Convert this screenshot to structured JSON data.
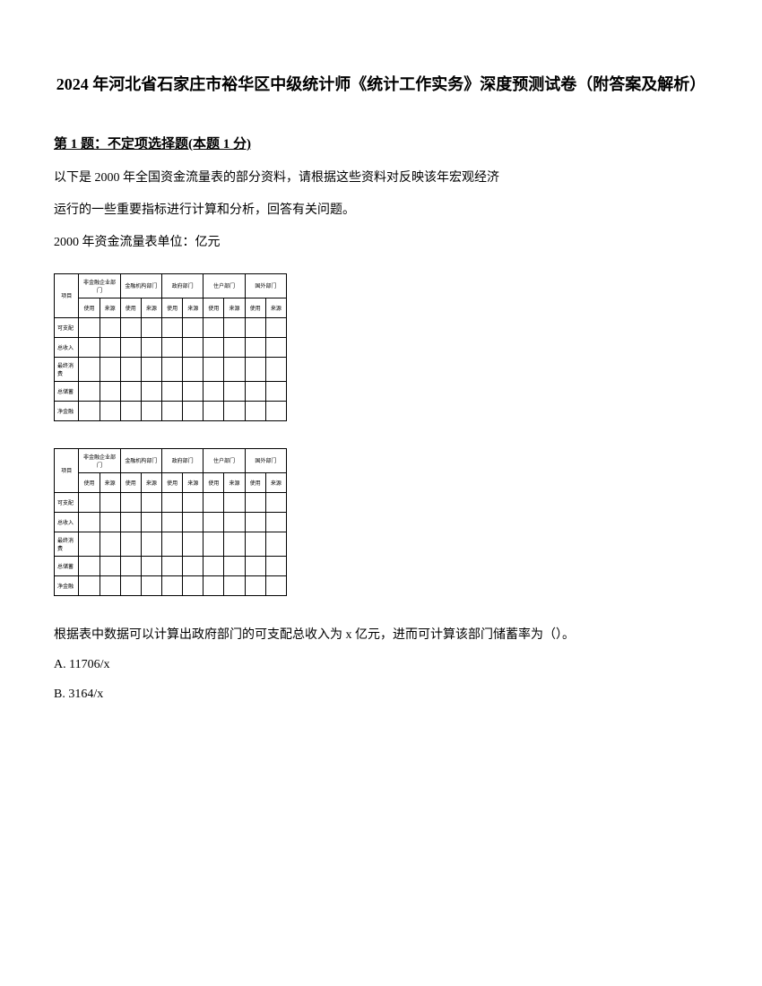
{
  "title": "2024 年河北省石家庄市裕华区中级统计师《统计工作实务》深度预测试卷（附答案及解析）",
  "question": {
    "header": "第 1 题：不定项选择题(本题 1 分)",
    "line1": "以下是 2000 年全国资金流量表的部分资料，请根据这些资料对反映该年宏观经济",
    "line2": "运行的一些重要指标进行计算和分析，回答有关问题。",
    "line3": "2000 年资金流量表单位：亿元"
  },
  "table": {
    "headers": {
      "row1_col1": "非金融企业部门",
      "row1_col2": "金融机构部门",
      "row1_col3": "政府部门",
      "row1_col4": "住户部门",
      "row1_col5": "国外部门",
      "row2_label": "项目",
      "sub_cols": [
        "使用",
        "来源",
        "使用",
        "来源",
        "使用",
        "来源",
        "使用",
        "来源",
        "使用",
        "来源"
      ]
    },
    "rows": [
      {
        "label": "可支配",
        "cells": [
          "",
          "",
          "",
          "",
          "",
          "",
          "",
          "",
          "",
          ""
        ]
      },
      {
        "label": "总收入",
        "cells": [
          "",
          "",
          "",
          "",
          "",
          "",
          "",
          "",
          "",
          ""
        ]
      },
      {
        "label": "最终消费",
        "cells": [
          "",
          "",
          "",
          "",
          "",
          "",
          "",
          "",
          "",
          ""
        ]
      },
      {
        "label": "总储蓄",
        "cells": [
          "",
          "",
          "",
          "",
          "",
          "",
          "",
          "",
          "",
          ""
        ]
      },
      {
        "label": "净金融",
        "cells": [
          "",
          "",
          "",
          "",
          "",
          "",
          "",
          "",
          "",
          ""
        ]
      }
    ]
  },
  "conclusion": "根据表中数据可以计算出政府部门的可支配总收入为 x 亿元，进而可计算该部门储蓄率为（）。",
  "options": {
    "a": "A. 11706/x",
    "b": "B. 3164/x"
  }
}
